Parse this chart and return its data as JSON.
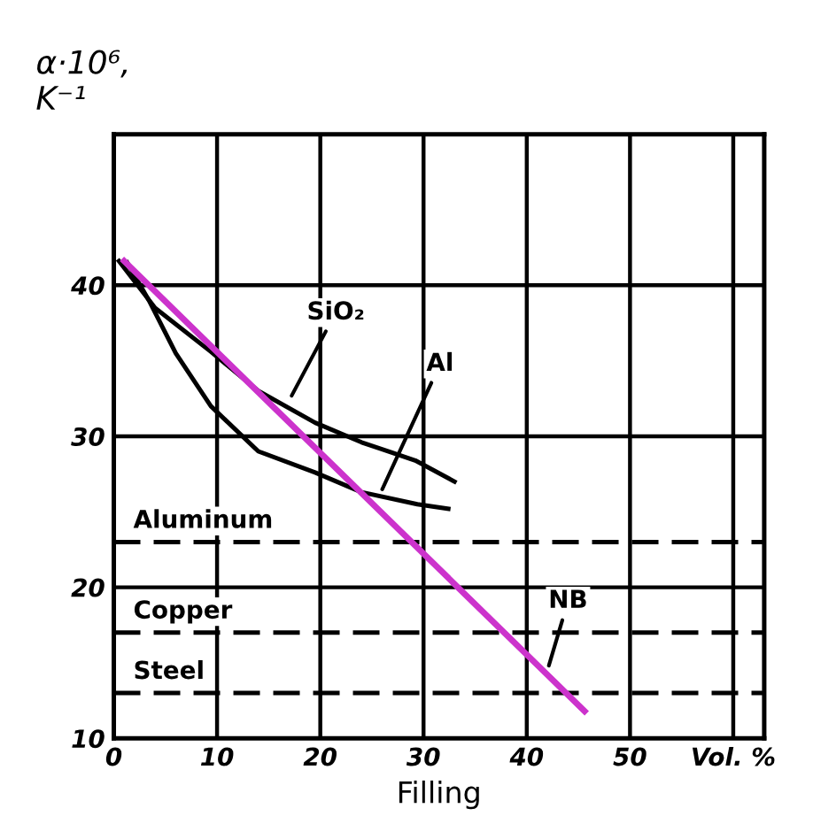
{
  "chart_data": {
    "type": "line",
    "xlabel": "Filling",
    "ylabel": "α·10⁶,\nK⁻¹",
    "xlim": [
      0,
      63
    ],
    "ylim": [
      10,
      50
    ],
    "xticks": [
      0,
      10,
      20,
      30,
      40,
      50,
      {
        "value": 60,
        "label": "Vol. %"
      }
    ],
    "yticks": [
      10,
      20,
      30,
      40
    ],
    "grid": true,
    "marker": "none",
    "line_style": "solid",
    "series": [
      {
        "color": "#000000",
        "x": [
          0.5,
          4,
          9.4,
          14,
          19.5,
          24,
          29.2,
          33
        ],
        "values": [
          41.6,
          38.5,
          35.6,
          33,
          30.9,
          29.6,
          28.4,
          27
        ]
      },
      {
        "color": "#000000",
        "x": [
          1.3,
          3.4,
          6,
          9.4,
          14,
          19.5,
          24,
          29.4,
          32.4
        ],
        "values": [
          41.5,
          39,
          35.5,
          32,
          29,
          27.6,
          26.3,
          25.5,
          25.2
        ]
      },
      {
        "color": "#cc33cc",
        "x": [
          1,
          45.6
        ],
        "values": [
          41.6,
          11.8
        ]
      }
    ],
    "ref_lines": [
      {
        "axis": "y",
        "value": 23,
        "label": "Aluminum",
        "color": "#000000",
        "line_style": "dashed"
      },
      {
        "axis": "y",
        "value": 17,
        "label": "Copper",
        "color": "#000000",
        "line_style": "dashed"
      },
      {
        "axis": "y",
        "value": 13,
        "label": "Steel",
        "color": "#000000",
        "line_style": "dashed"
      }
    ],
    "annotations": [
      {
        "text": "SiO₂",
        "x": 17,
        "y": 32.4
      },
      {
        "text": "Al",
        "x": 25.8,
        "y": 26.2
      },
      {
        "text": "NB",
        "x": 42,
        "y": 14.5
      }
    ]
  }
}
